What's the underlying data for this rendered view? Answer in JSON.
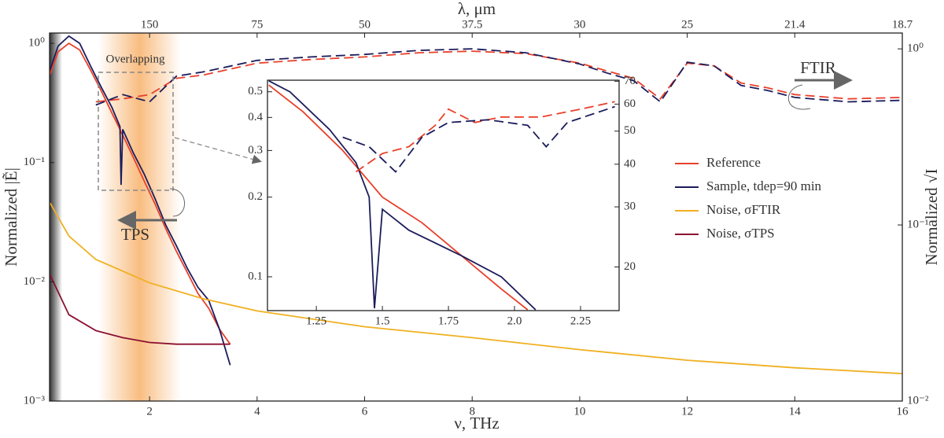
{
  "chart_data": [
    {
      "type": "line",
      "x_label": "ν, THz",
      "y_label": "Normalized |Ẽ|",
      "y2_label": "Normalized √I",
      "top_label": "λ, μm",
      "xlim": [
        0.14,
        16
      ],
      "xticks": [
        2,
        4,
        6,
        8,
        10,
        12,
        14,
        16
      ],
      "top_ticks": [
        {
          "value": 2,
          "label": "150"
        },
        {
          "value": 4,
          "label": "75"
        },
        {
          "value": 6,
          "label": "50"
        },
        {
          "value": 8,
          "label": "37.5"
        },
        {
          "value": 10,
          "label": "30"
        },
        {
          "value": 12,
          "label": "25"
        },
        {
          "value": 14,
          "label": "21.4"
        },
        {
          "value": 16,
          "label": "18.7"
        }
      ],
      "ylim": [
        0.001,
        1.22
      ],
      "log_y": true,
      "yticks": [
        {
          "value": 0.001,
          "label": "10⁻³"
        },
        {
          "value": 0.01,
          "label": "10⁻²"
        },
        {
          "value": 0.1,
          "label": "10⁻¹"
        },
        {
          "value": 1,
          "label": "10⁰"
        }
      ],
      "y2lim": [
        0.01,
        1.23
      ],
      "y2ticks": [
        {
          "value": 0.01,
          "label": "10⁻²"
        },
        {
          "value": 0.1,
          "label": "10⁻¹"
        },
        {
          "value": 1,
          "label": "10⁰"
        }
      ],
      "legend": "right",
      "annotations": {
        "overlap": "Overlapping",
        "tps": "TPS",
        "ftir": "FTIR"
      },
      "series": [
        {
          "name": "Reference",
          "color": "#e8402a",
          "x": [
            0.15,
            0.3,
            0.5,
            0.7,
            0.9,
            1.1,
            1.3,
            1.45,
            1.47,
            1.5,
            1.7,
            1.9,
            2.1,
            2.3,
            2.5,
            2.7,
            2.9,
            3.1,
            3.3,
            3.5
          ],
          "values": [
            0.55,
            0.85,
            1.0,
            0.88,
            0.6,
            0.4,
            0.26,
            0.19,
            0.18,
            0.17,
            0.11,
            0.07,
            0.045,
            0.028,
            0.018,
            0.012,
            0.008,
            0.006,
            0.004,
            0.003
          ]
        },
        {
          "name": "Sample, tdep=90 min",
          "color": "#1c1c5c",
          "x": [
            0.15,
            0.3,
            0.5,
            0.7,
            0.9,
            1.1,
            1.3,
            1.45,
            1.47,
            1.5,
            1.7,
            1.9,
            2.1,
            2.3,
            2.5,
            2.7,
            2.9,
            3.1,
            3.3,
            3.5
          ],
          "values": [
            0.6,
            0.95,
            1.15,
            1.0,
            0.65,
            0.43,
            0.29,
            0.2,
            0.065,
            0.19,
            0.12,
            0.08,
            0.05,
            0.03,
            0.02,
            0.013,
            0.009,
            0.007,
            0.004,
            0.002
          ]
        },
        {
          "name": "Noise, σFTIR",
          "color": "#f0b020",
          "x": [
            0.15,
            0.5,
            1,
            2,
            3,
            4,
            6,
            8,
            10,
            12,
            14,
            16
          ],
          "values": [
            0.0458,
            0.0242,
            0.0154,
            0.0098,
            0.0072,
            0.0057,
            0.0042,
            0.0034,
            0.0027,
            0.0022,
            0.0019,
            0.0017
          ]
        },
        {
          "name": "Noise, σTPS",
          "color": "#8b1030",
          "x": [
            0.15,
            0.5,
            1,
            1.5,
            2,
            2.5,
            3,
            3.5
          ],
          "values": [
            0.0114,
            0.0053,
            0.0039,
            0.0034,
            0.0031,
            0.003,
            0.003,
            0.003
          ]
        },
        {
          "color": "#e8402a",
          "dashed": true,
          "axis": "y2",
          "x": [
            1,
            1.5,
            2,
            2.5,
            3,
            4,
            5,
            6,
            7,
            8,
            9,
            10,
            10.5,
            11,
            11.5,
            12,
            12.5,
            13,
            13.5,
            14,
            15,
            16
          ],
          "values": [
            0.5,
            0.52,
            0.55,
            0.68,
            0.71,
            0.83,
            0.87,
            0.9,
            0.95,
            0.97,
            0.94,
            0.83,
            0.75,
            0.68,
            0.52,
            0.83,
            0.8,
            0.64,
            0.6,
            0.55,
            0.52,
            0.53
          ]
        },
        {
          "color": "#1c1c5c",
          "dashed": true,
          "axis": "y2",
          "x": [
            1,
            1.5,
            2,
            2.5,
            3,
            4,
            5,
            6,
            7,
            8,
            9,
            10,
            10.5,
            11,
            11.5,
            12,
            12.5,
            13,
            13.5,
            14,
            15,
            16
          ],
          "values": [
            0.48,
            0.55,
            0.5,
            0.7,
            0.74,
            0.86,
            0.9,
            0.93,
            0.98,
            1.0,
            0.95,
            0.82,
            0.73,
            0.66,
            0.5,
            0.84,
            0.8,
            0.62,
            0.58,
            0.53,
            0.5,
            0.51
          ]
        }
      ]
    },
    {
      "type": "line",
      "xlim": [
        1.065,
        2.396
      ],
      "xticks": [
        1.25,
        1.5,
        1.75,
        {
          "value": 2,
          "label": "2.0"
        },
        2.25
      ],
      "ylim": [
        0.0745,
        0.553
      ],
      "log_y": true,
      "yticks": [
        0.1,
        0.2,
        0.3,
        0.4,
        0.5
      ],
      "y2lim": [
        14.9,
        70.5
      ],
      "y2ticks": [
        20,
        30,
        40,
        50,
        60,
        70
      ],
      "series": [
        {
          "color": "#e8402a",
          "x": [
            1.07,
            1.2,
            1.35,
            1.5,
            1.65,
            1.8,
            1.95,
            2.05
          ],
          "values": [
            0.53,
            0.42,
            0.3,
            0.2,
            0.16,
            0.12,
            0.09,
            0.075
          ]
        },
        {
          "color": "#1c1c5c",
          "x": [
            1.07,
            1.15,
            1.3,
            1.4,
            1.45,
            1.47,
            1.5,
            1.6,
            1.8,
            1.95,
            2.08
          ],
          "values": [
            0.55,
            0.5,
            0.36,
            0.27,
            0.2,
            0.076,
            0.18,
            0.15,
            0.12,
            0.1,
            0.075
          ]
        },
        {
          "color": "#e8402a",
          "dashed": true,
          "axis": "y2",
          "x": [
            1.4,
            1.5,
            1.6,
            1.7,
            1.75,
            1.85,
            1.95,
            2.1,
            2.25,
            2.38
          ],
          "values": [
            38,
            43,
            45,
            52,
            58,
            53,
            55,
            55,
            58,
            61
          ]
        },
        {
          "color": "#1c1c5c",
          "dashed": true,
          "axis": "y2",
          "x": [
            1.35,
            1.45,
            1.55,
            1.65,
            1.75,
            1.9,
            2.05,
            2.12,
            2.2,
            2.38
          ],
          "values": [
            48,
            45,
            38,
            48,
            53,
            54,
            52,
            45,
            53,
            59
          ]
        }
      ]
    }
  ]
}
